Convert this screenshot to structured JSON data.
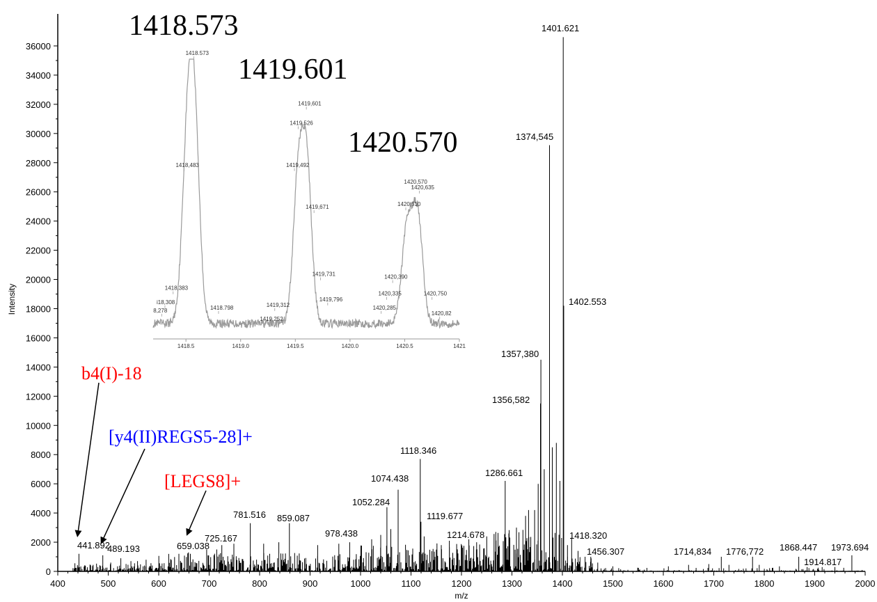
{
  "chart_data": [
    {
      "type": "line",
      "title": "",
      "xlabel": "m/z",
      "ylabel": "Intensity",
      "xlim": [
        400,
        2000
      ],
      "ylim": [
        0,
        37000
      ],
      "x_ticks": [
        "400",
        "500",
        "600",
        "700",
        "800",
        "900",
        "1000",
        "1100",
        "1200",
        "1300",
        "1400",
        "1500",
        "1600",
        "1700",
        "1800",
        "1900",
        "2000"
      ],
      "y_ticks": [
        "0",
        "2000",
        "4000",
        "6000",
        "8000",
        "10000",
        "12000",
        "14000",
        "16000",
        "18000",
        "20000",
        "22000",
        "24000",
        "26000",
        "28000",
        "30000",
        "32000",
        "34000",
        "36000"
      ],
      "labeled_peaks": [
        {
          "x": 441.892,
          "y": 1200,
          "label": "441.892"
        },
        {
          "x": 489.193,
          "y": 1100,
          "label": "489.193"
        },
        {
          "x": 659.038,
          "y": 1300,
          "label": "659.038"
        },
        {
          "x": 725.167,
          "y": 1800,
          "label": "725.167"
        },
        {
          "x": 781.516,
          "y": 3300,
          "label": "781.516"
        },
        {
          "x": 859.087,
          "y": 3300,
          "label": "859.087"
        },
        {
          "x": 978.438,
          "y": 2000,
          "label": "978.438"
        },
        {
          "x": 1052.284,
          "y": 4400,
          "label": "1052.284"
        },
        {
          "x": 1074.438,
          "y": 5600,
          "label": "1074.438"
        },
        {
          "x": 1118.346,
          "y": 7700,
          "label": "1118.346"
        },
        {
          "x": 1119.677,
          "y": 3400,
          "label": "1119.677"
        },
        {
          "x": 1214.678,
          "y": 2200,
          "label": "1214.678"
        },
        {
          "x": 1286.661,
          "y": 6200,
          "label": "1286.661"
        },
        {
          "x": 1356.582,
          "y": 11500,
          "label": "1356,582"
        },
        {
          "x": 1357.38,
          "y": 14500,
          "label": "1357,380"
        },
        {
          "x": 1374.545,
          "y": 29200,
          "label": "1374,545"
        },
        {
          "x": 1401.621,
          "y": 36600,
          "label": "1401.621"
        },
        {
          "x": 1402.553,
          "y": 18200,
          "label": "1402.553"
        },
        {
          "x": 1418.32,
          "y": 2300,
          "label": "1418.320"
        },
        {
          "x": 1456.307,
          "y": 1000,
          "label": "1456.307"
        },
        {
          "x": 1714.834,
          "y": 1000,
          "label": "1714,834"
        },
        {
          "x": 1776.772,
          "y": 1000,
          "label": "1776,772"
        },
        {
          "x": 1868.447,
          "y": 1000,
          "label": "1868.447"
        },
        {
          "x": 1914.817,
          "y": 300,
          "label": "1914.817"
        },
        {
          "x": 1973.694,
          "y": 1100,
          "label": "1973.694"
        }
      ],
      "annotations": [
        {
          "text": "b4(I)-18",
          "color": "#ff0000",
          "arrow_to_mz": 441.892
        },
        {
          "text": "[y4(II)REGS5-28]+",
          "color": "#0000ff",
          "arrow_to_mz": 489.193
        },
        {
          "text": "[LEGS8]+",
          "color": "#ff0000",
          "arrow_to_mz": 659.038
        }
      ]
    },
    {
      "type": "line",
      "title": "",
      "xlabel": "",
      "xlim": [
        1418.2,
        1421.0
      ],
      "ylim": [
        0,
        1
      ],
      "x_ticks": [
        "1418.5",
        "1419.0",
        "1419.5",
        "1420.0",
        "1420.5",
        "1421"
      ],
      "big_labels": [
        "1418.573",
        "1419.601",
        "1420.570"
      ],
      "peak_labels": [
        {
          "x": 1418.573,
          "y": 1.0,
          "label": "1418.573"
        },
        {
          "x": 1418.483,
          "y": 0.6,
          "label": "1418,483"
        },
        {
          "x": 1418.383,
          "y": 0.16,
          "label": "1418,383"
        },
        {
          "x": 1418.308,
          "y": 0.11,
          "label": "i18,308"
        },
        {
          "x": 1418.278,
          "y": 0.08,
          "label": "8,278"
        },
        {
          "x": 1418.798,
          "y": 0.09,
          "label": "1418.798"
        },
        {
          "x": 1419.312,
          "y": 0.1,
          "label": "1419,312"
        },
        {
          "x": 1419.252,
          "y": 0.05,
          "label": "1419,252"
        },
        {
          "x": 1419.492,
          "y": 0.6,
          "label": "1419,492"
        },
        {
          "x": 1419.526,
          "y": 0.75,
          "label": "1419,526"
        },
        {
          "x": 1419.601,
          "y": 0.82,
          "label": "1419,601"
        },
        {
          "x": 1419.671,
          "y": 0.45,
          "label": "1419,671"
        },
        {
          "x": 1419.731,
          "y": 0.21,
          "label": "1419,731"
        },
        {
          "x": 1419.796,
          "y": 0.12,
          "label": "1419,796"
        },
        {
          "x": 1420.285,
          "y": 0.09,
          "label": "1420,285"
        },
        {
          "x": 1420.335,
          "y": 0.14,
          "label": "1420,335"
        },
        {
          "x": 1420.39,
          "y": 0.2,
          "label": "1420,390"
        },
        {
          "x": 1420.51,
          "y": 0.46,
          "label": "1420,510"
        },
        {
          "x": 1420.57,
          "y": 0.54,
          "label": "1420,570"
        },
        {
          "x": 1420.635,
          "y": 0.52,
          "label": "1420,635"
        },
        {
          "x": 1420.75,
          "y": 0.14,
          "label": "1420,750"
        },
        {
          "x": 1420.82,
          "y": 0.07,
          "label": "1420,82"
        }
      ]
    }
  ],
  "colors": {
    "axis": "#000000",
    "spectrum": "#000000",
    "inset": "#9a9a9a",
    "red": "#ff0000",
    "blue": "#0000ff"
  }
}
